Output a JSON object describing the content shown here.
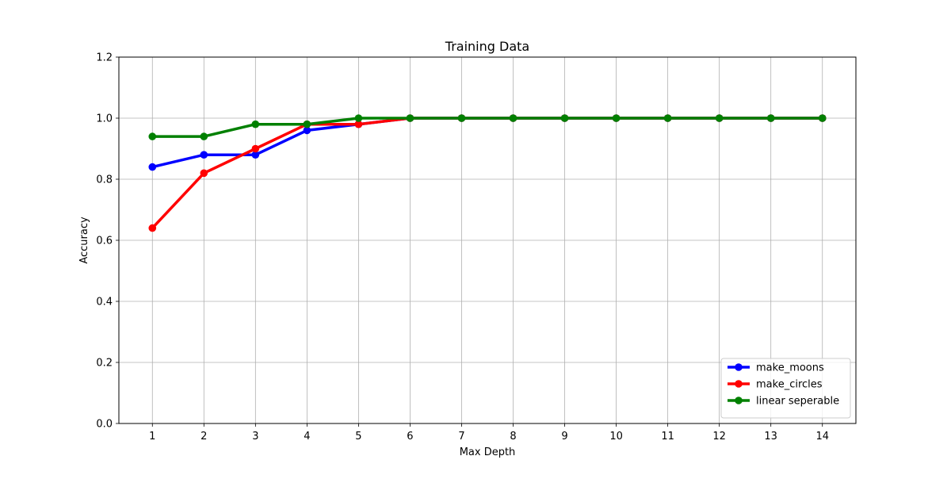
{
  "chart_data": {
    "type": "line",
    "title": "Training Data",
    "xlabel": "Max Depth",
    "ylabel": "Accuracy",
    "x": [
      1,
      2,
      3,
      4,
      5,
      6,
      7,
      8,
      9,
      10,
      11,
      12,
      13,
      14
    ],
    "xlim": [
      0.35,
      14.65
    ],
    "ylim": [
      0.0,
      1.2
    ],
    "xticks": [
      "1",
      "2",
      "3",
      "4",
      "5",
      "6",
      "7",
      "8",
      "9",
      "10",
      "11",
      "12",
      "13",
      "14"
    ],
    "yticks": [
      "0.0",
      "0.2",
      "0.4",
      "0.6",
      "0.8",
      "1.0",
      "1.2"
    ],
    "grid": true,
    "legend_position": "lower right",
    "series": [
      {
        "name": "make_moons",
        "color": "#0000ff",
        "marker": "circle",
        "values": [
          0.84,
          0.88,
          0.88,
          0.96,
          0.98,
          1.0,
          1.0,
          1.0,
          1.0,
          1.0,
          1.0,
          1.0,
          1.0,
          1.0
        ]
      },
      {
        "name": "make_circles",
        "color": "#ff0000",
        "marker": "circle",
        "values": [
          0.64,
          0.82,
          0.9,
          0.98,
          0.98,
          1.0,
          1.0,
          1.0,
          1.0,
          1.0,
          1.0,
          1.0,
          1.0,
          1.0
        ]
      },
      {
        "name": "linear seperable",
        "color": "#008000",
        "marker": "circle",
        "values": [
          0.94,
          0.94,
          0.98,
          0.98,
          1.0,
          1.0,
          1.0,
          1.0,
          1.0,
          1.0,
          1.0,
          1.0,
          1.0,
          1.0
        ]
      }
    ]
  }
}
